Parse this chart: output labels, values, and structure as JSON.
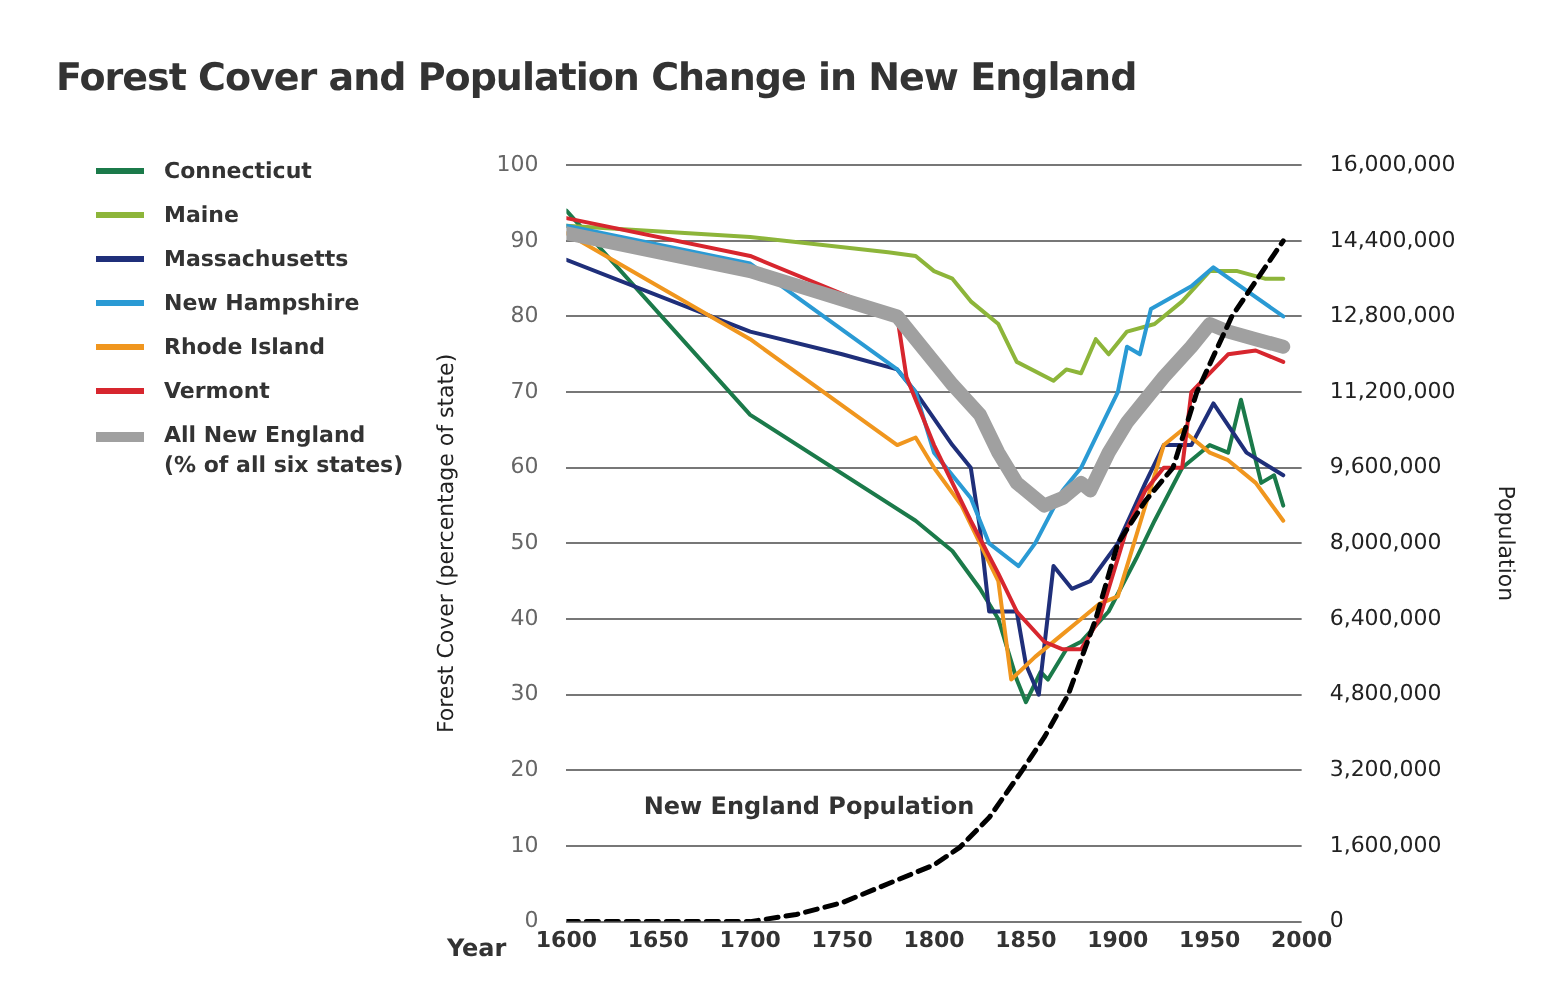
{
  "chart_data": {
    "type": "line",
    "title": "Forest Cover and Population Change in New England",
    "xlabel": "Year",
    "ylabel": "Forest Cover (percentage of state)",
    "y2label": "Population",
    "xlim": [
      1600,
      2000
    ],
    "xticks": [
      1600,
      1650,
      1700,
      1750,
      1800,
      1850,
      1900,
      1950,
      2000
    ],
    "ylim": [
      0,
      100
    ],
    "yticks": [
      0,
      10,
      20,
      30,
      40,
      50,
      60,
      70,
      80,
      90,
      100
    ],
    "y2lim": [
      0,
      16000000
    ],
    "y2ticks": [
      {
        "value": 0,
        "label": "0"
      },
      {
        "value": 1600000,
        "label": "1,600,000"
      },
      {
        "value": 3200000,
        "label": "3,200,000"
      },
      {
        "value": 4800000,
        "label": "4,800,000"
      },
      {
        "value": 6400000,
        "label": "6,400,000"
      },
      {
        "value": 8000000,
        "label": "8,000,000"
      },
      {
        "value": 9600000,
        "label": "9,600,000"
      },
      {
        "value": 11200000,
        "label": "11,200,000"
      },
      {
        "value": 12800000,
        "label": "12,800,000"
      },
      {
        "value": 14400000,
        "label": "14,400,000"
      },
      {
        "value": 16000000,
        "label": "16,000,000"
      }
    ],
    "grid": "y",
    "legend": "left",
    "marker": "none",
    "series": [
      {
        "name": "Connecticut",
        "color": "#1b7a4a",
        "x": [
          1600,
          1700,
          1790,
          1810,
          1825,
          1835,
          1845,
          1850,
          1858,
          1862,
          1872,
          1880,
          1895,
          1910,
          1920,
          1935,
          1950,
          1960,
          1967,
          1978,
          1985,
          1990
        ],
        "values": [
          94,
          67,
          53,
          49,
          44,
          40,
          32,
          29,
          33,
          32,
          36,
          37,
          41,
          48,
          53,
          60,
          63,
          62,
          69,
          58,
          59,
          55
        ]
      },
      {
        "name": "Maine",
        "color": "#8db53a",
        "x": [
          1600,
          1700,
          1775,
          1790,
          1800,
          1810,
          1820,
          1835,
          1845,
          1865,
          1872,
          1880,
          1888,
          1895,
          1905,
          1920,
          1935,
          1950,
          1965,
          1980,
          1990
        ],
        "values": [
          92,
          90.5,
          88.5,
          88,
          86,
          85,
          82,
          79,
          74,
          71.5,
          73,
          72.5,
          77,
          75,
          78,
          79,
          82,
          86,
          86,
          85,
          85
        ]
      },
      {
        "name": "Massachusetts",
        "color": "#1f2f7a",
        "x": [
          1600,
          1700,
          1750,
          1780,
          1790,
          1810,
          1820,
          1825,
          1830,
          1845,
          1850,
          1857,
          1865,
          1875,
          1885,
          1900,
          1915,
          1925,
          1940,
          1952,
          1970,
          1990
        ],
        "values": [
          87.5,
          78,
          75,
          73,
          70,
          63,
          60,
          52,
          41,
          41,
          34,
          30,
          47,
          44,
          45,
          50,
          58,
          63,
          63,
          68.5,
          62,
          59
        ]
      },
      {
        "name": "New Hampshire",
        "color": "#2a9ad4",
        "x": [
          1600,
          1700,
          1780,
          1790,
          1800,
          1820,
          1830,
          1846,
          1855,
          1870,
          1880,
          1890,
          1900,
          1905,
          1912,
          1918,
          1940,
          1952,
          1990
        ],
        "values": [
          92,
          87,
          73,
          70,
          62,
          56,
          50,
          47,
          50,
          57,
          60,
          65,
          70,
          76,
          75,
          81,
          84,
          86.5,
          80
        ]
      },
      {
        "name": "Rhode Island",
        "color": "#f0961e",
        "x": [
          1600,
          1700,
          1780,
          1790,
          1800,
          1815,
          1825,
          1835,
          1842,
          1855,
          1870,
          1880,
          1890,
          1900,
          1915,
          1925,
          1935,
          1950,
          1960,
          1975,
          1990
        ],
        "values": [
          91,
          77,
          63,
          64,
          60,
          55,
          50,
          45,
          32,
          35,
          38,
          40,
          42,
          43,
          55,
          63,
          65,
          62,
          61,
          58,
          53
        ]
      },
      {
        "name": "Vermont",
        "color": "#d7262e",
        "x": [
          1600,
          1700,
          1780,
          1785,
          1800,
          1810,
          1820,
          1835,
          1845,
          1860,
          1870,
          1880,
          1890,
          1905,
          1915,
          1925,
          1935,
          1940,
          1960,
          1975,
          1990
        ],
        "values": [
          93,
          88,
          80,
          72,
          63,
          58,
          53,
          46,
          41,
          37,
          36,
          36,
          40,
          52,
          57,
          60,
          60,
          70,
          75,
          75.5,
          74
        ]
      },
      {
        "name": "All New England\n(% of all six states)",
        "color": "#a0a0a0",
        "x": [
          1600,
          1700,
          1780,
          1800,
          1810,
          1825,
          1835,
          1845,
          1860,
          1870,
          1880,
          1885,
          1895,
          1905,
          1925,
          1940,
          1950,
          1960,
          1975,
          1990
        ],
        "values": [
          91,
          86,
          80,
          74,
          71,
          67,
          62,
          58,
          55,
          56,
          58,
          57,
          62,
          66,
          72,
          76,
          79,
          78,
          77,
          76
        ]
      },
      {
        "name": "New England Population",
        "color": "#000000",
        "axis": "y2",
        "line_style": "dashed",
        "x": [
          1600,
          1650,
          1700,
          1725,
          1750,
          1775,
          1800,
          1814,
          1830,
          1848,
          1860,
          1873,
          1888,
          1900,
          1915,
          1930,
          1943,
          1962,
          1990
        ],
        "values": [
          0,
          0,
          0,
          150000,
          400000,
          800000,
          1200000,
          1570000,
          2200000,
          3200000,
          3900000,
          4800000,
          6400000,
          8000000,
          8900000,
          9600000,
          11200000,
          12800000,
          14400000
        ]
      }
    ]
  }
}
